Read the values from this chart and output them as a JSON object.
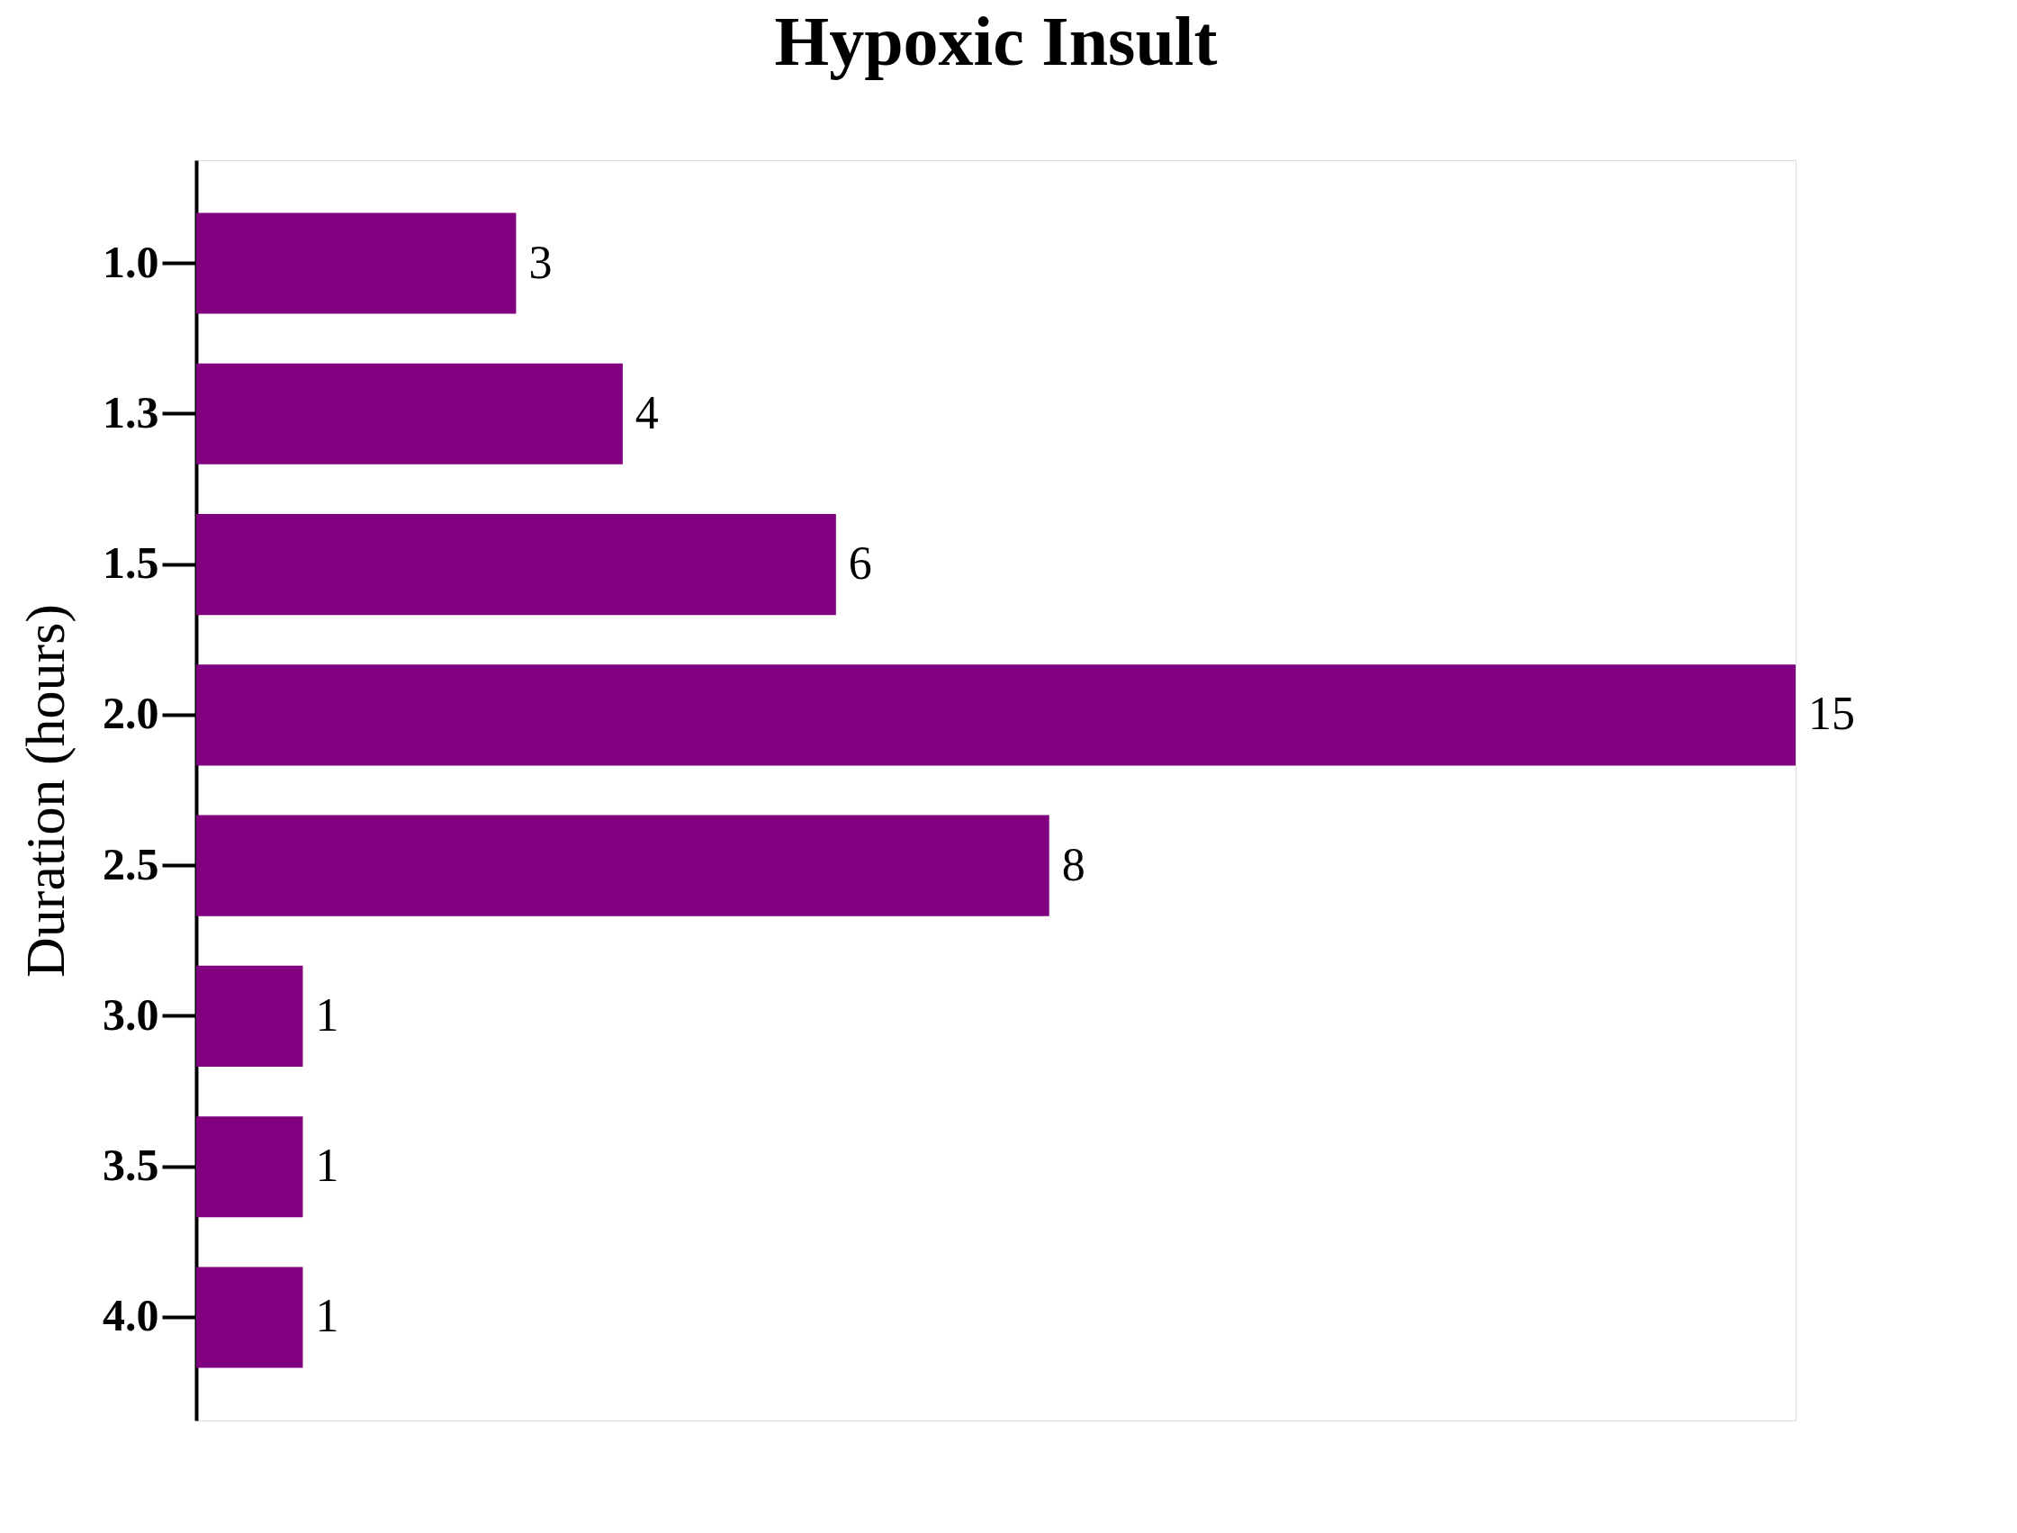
{
  "chart_data": {
    "type": "bar",
    "orientation": "horizontal",
    "title": "Hypoxic Insult",
    "ylabel": "Duration (hours)",
    "categories": [
      "1.0",
      "1.3",
      "1.5",
      "2.0",
      "2.5",
      "3.0",
      "3.5",
      "4.0"
    ],
    "values": [
      3,
      4,
      6,
      15,
      8,
      1,
      1,
      1
    ],
    "color": "#800080",
    "data_labels": true,
    "tick_labels": "y"
  }
}
